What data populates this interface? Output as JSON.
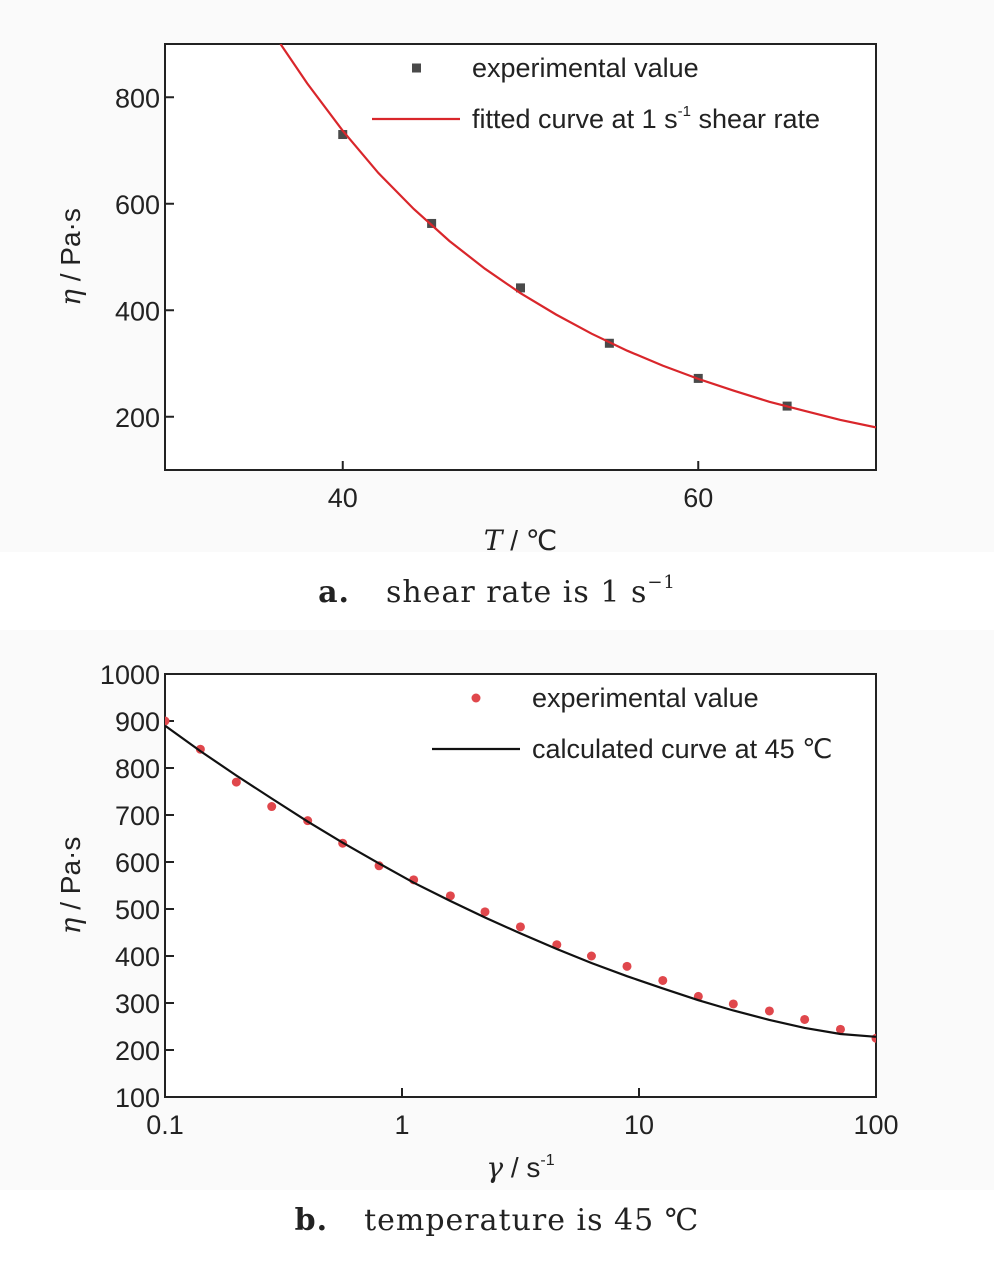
{
  "chart_data": [
    {
      "type": "scatter",
      "caption_letter": "a.",
      "caption_text": "shear rate is 1 s",
      "caption_sup": "−1",
      "ylabel_symbol": "η",
      "ylabel_unit": " / Pa·s",
      "xlabel_symbol": "T",
      "xlabel_unit": " / ℃",
      "xlim": [
        30,
        70
      ],
      "ylim": [
        100,
        900
      ],
      "xticks": [
        40,
        60
      ],
      "yticks": [
        200,
        400,
        600,
        800
      ],
      "legend_position": "top-right",
      "series": [
        {
          "name": "experimental value",
          "kind": "points",
          "marker": "square",
          "color": "#4a4a4a",
          "x": [
            40,
            45,
            50,
            55,
            60,
            65
          ],
          "y": [
            730,
            563,
            442,
            338,
            272,
            220
          ]
        },
        {
          "name": "fitted curve at 1 s",
          "name_sup": "-1",
          "name_suffix": " shear rate",
          "kind": "line",
          "color": "#d9262b",
          "x": [
            36.5,
            38,
            40,
            42,
            44,
            46,
            48,
            50,
            52,
            54,
            56,
            58,
            60,
            62,
            64,
            66,
            68,
            70
          ],
          "y": [
            900,
            826,
            737,
            658,
            590,
            530,
            478,
            432,
            392,
            356,
            324,
            296,
            271,
            249,
            228,
            211,
            194,
            180
          ]
        }
      ]
    },
    {
      "type": "scatter",
      "caption_letter": "b.",
      "caption_text": "temperature is 45 ℃",
      "ylabel_symbol": "η",
      "ylabel_unit": " / Pa·s",
      "xlabel_symbol": "γ",
      "xlabel_unit": " / s",
      "xlabel_sup": "-1",
      "xscale": "log",
      "xlim": [
        0.1,
        100
      ],
      "ylim": [
        100,
        1000
      ],
      "xticks": [
        0.1,
        1,
        10,
        100
      ],
      "xtick_labels": [
        "0.1",
        "1",
        "10",
        "100"
      ],
      "yticks": [
        100,
        200,
        300,
        400,
        500,
        600,
        700,
        800,
        900,
        1000
      ],
      "legend_position": "top-right",
      "series": [
        {
          "name": "experimental value",
          "kind": "points",
          "marker": "circle",
          "color": "#e0474c",
          "x": [
            0.1,
            0.141,
            0.2,
            0.282,
            0.4,
            0.562,
            0.8,
            1.12,
            1.6,
            2.24,
            3.16,
            4.5,
            6.3,
            8.9,
            12.6,
            17.8,
            25,
            35.5,
            50,
            70.8,
            100
          ],
          "y": [
            900,
            840,
            770,
            718,
            688,
            640,
            592,
            562,
            528,
            494,
            462,
            424,
            400,
            378,
            348,
            314,
            298,
            283,
            265,
            244,
            225
          ]
        },
        {
          "name": "calculated curve at 45 ℃",
          "kind": "line",
          "color": "#111111",
          "x": [
            0.1,
            0.141,
            0.2,
            0.282,
            0.4,
            0.562,
            0.8,
            1.12,
            1.6,
            2.24,
            3.16,
            4.5,
            6.3,
            8.9,
            12.6,
            17.8,
            25,
            35.5,
            50,
            70.8,
            100
          ],
          "y": [
            890,
            836,
            784,
            735,
            686,
            641,
            597,
            556,
            517,
            482,
            448,
            415,
            385,
            357,
            331,
            306,
            284,
            264,
            247,
            234,
            228
          ]
        }
      ]
    }
  ]
}
